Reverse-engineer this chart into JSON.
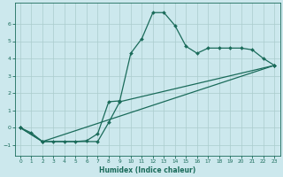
{
  "xlabel": "Humidex (Indice chaleur)",
  "bg_color": "#cce8ed",
  "grid_color": "#aacccc",
  "line_color": "#1a6b5a",
  "xlim": [
    -0.5,
    23.5
  ],
  "ylim": [
    -1.6,
    7.2
  ],
  "xticks": [
    0,
    1,
    2,
    3,
    4,
    5,
    6,
    7,
    8,
    9,
    10,
    11,
    12,
    13,
    14,
    15,
    16,
    17,
    18,
    19,
    20,
    21,
    22,
    23
  ],
  "yticks": [
    -1,
    0,
    1,
    2,
    3,
    4,
    5,
    6
  ],
  "line1_x": [
    0,
    1,
    2,
    3,
    4,
    5,
    6,
    7,
    8,
    9,
    10,
    11,
    12,
    13,
    14,
    15,
    16,
    17,
    18,
    19,
    20,
    21,
    22,
    23
  ],
  "line1_y": [
    0.0,
    -0.3,
    -0.8,
    -0.8,
    -0.8,
    -0.8,
    -0.75,
    -0.35,
    1.5,
    1.55,
    4.3,
    5.15,
    6.65,
    6.65,
    5.9,
    4.7,
    4.3,
    4.6,
    4.6,
    4.6,
    4.6,
    4.5,
    4.0,
    3.6
  ],
  "line2_x": [
    0,
    2,
    7,
    8,
    9,
    23
  ],
  "line2_y": [
    0.0,
    -0.8,
    -0.8,
    0.3,
    1.5,
    3.6
  ],
  "line3_x": [
    0,
    2,
    23
  ],
  "line3_y": [
    0.0,
    -0.8,
    3.6
  ]
}
